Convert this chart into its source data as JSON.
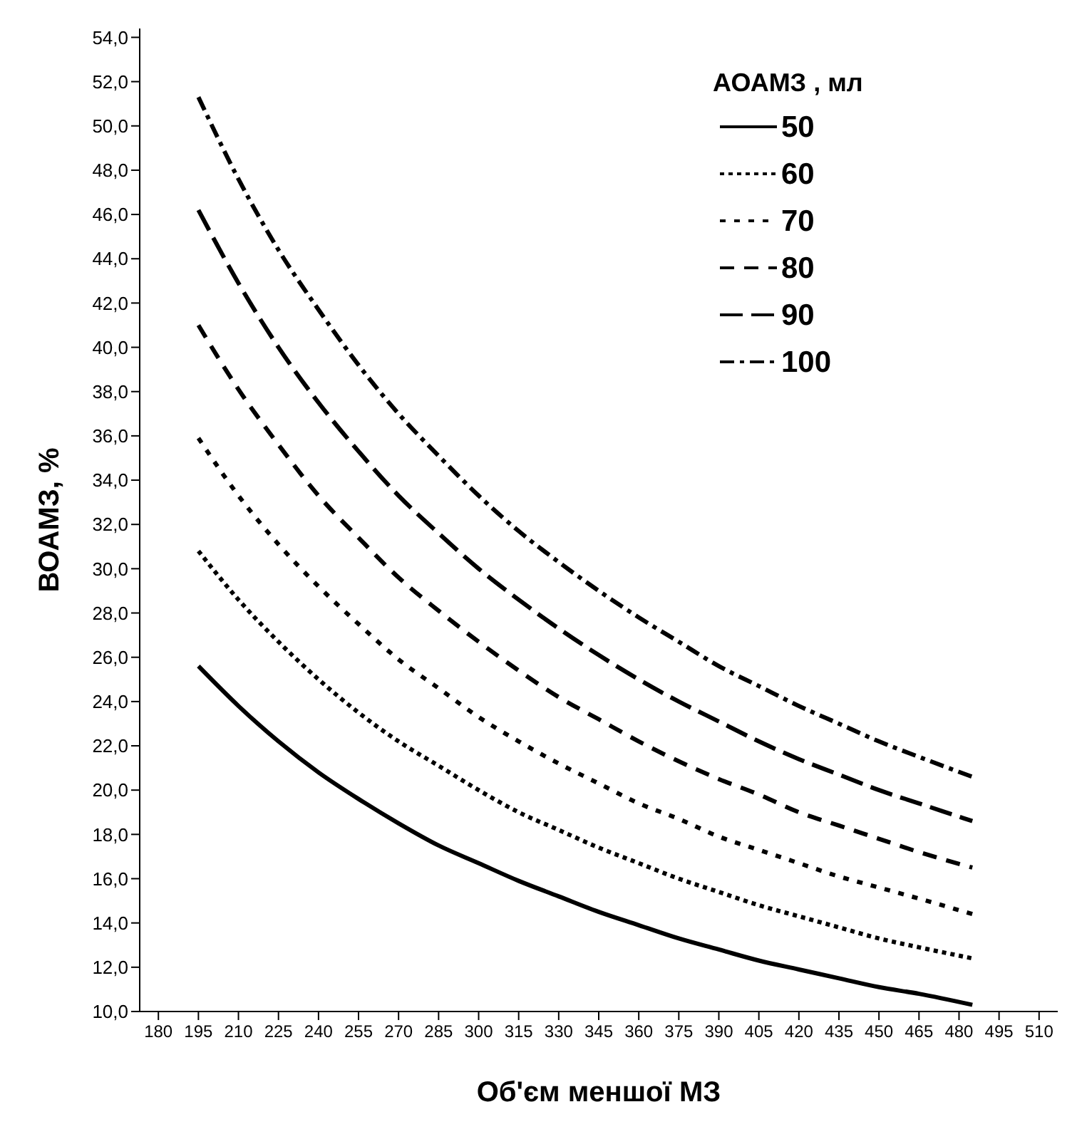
{
  "chart_data": {
    "type": "line",
    "xlabel": "Об'єм меншої МЗ",
    "ylabel": "ВОАМЗ, %",
    "legend_title": "АОАМЗ , мл",
    "legend": "top right",
    "grid": false,
    "marker": "none",
    "x": [
      195,
      210,
      225,
      240,
      255,
      270,
      285,
      300,
      315,
      330,
      345,
      360,
      375,
      390,
      405,
      420,
      435,
      450,
      465,
      485
    ],
    "xlim": [
      173,
      517
    ],
    "xticks": [
      180,
      195,
      210,
      225,
      240,
      255,
      270,
      285,
      300,
      315,
      330,
      345,
      360,
      375,
      390,
      405,
      420,
      435,
      450,
      465,
      480,
      495,
      510
    ],
    "ylim": [
      10,
      54.4
    ],
    "yticks": [
      {
        "value": 10,
        "label": "10,0"
      },
      {
        "value": 12,
        "label": "12,0"
      },
      {
        "value": 14,
        "label": "14,0"
      },
      {
        "value": 16,
        "label": "16,0"
      },
      {
        "value": 18,
        "label": "18,0"
      },
      {
        "value": 20,
        "label": "20,0"
      },
      {
        "value": 22,
        "label": "22,0"
      },
      {
        "value": 24,
        "label": "24,0"
      },
      {
        "value": 26,
        "label": "26,0"
      },
      {
        "value": 28,
        "label": "28,0"
      },
      {
        "value": 30,
        "label": "30,0"
      },
      {
        "value": 32,
        "label": "32,0"
      },
      {
        "value": 34,
        "label": "34,0"
      },
      {
        "value": 36,
        "label": "36,0"
      },
      {
        "value": 38,
        "label": "38,0"
      },
      {
        "value": 40,
        "label": "40,0"
      },
      {
        "value": 42,
        "label": "42,0"
      },
      {
        "value": 44,
        "label": "44,0"
      },
      {
        "value": 46,
        "label": "46,0"
      },
      {
        "value": 48,
        "label": "48,0"
      },
      {
        "value": 50,
        "label": "50,0"
      },
      {
        "value": 52,
        "label": "52,0"
      },
      {
        "value": 54,
        "label": "54,0"
      }
    ],
    "series": [
      {
        "name": "50",
        "color": "#000000",
        "line_style": "solid",
        "values": [
          25.6,
          23.8,
          22.2,
          20.8,
          19.6,
          18.5,
          17.5,
          16.7,
          15.9,
          15.2,
          14.5,
          13.9,
          13.3,
          12.8,
          12.3,
          11.9,
          11.5,
          11.1,
          10.8,
          10.3
        ]
      },
      {
        "name": "60",
        "color": "#000000",
        "line_style": "dotted",
        "values": [
          30.8,
          28.6,
          26.7,
          25.0,
          23.5,
          22.2,
          21.1,
          20.0,
          19.0,
          18.2,
          17.4,
          16.7,
          16.0,
          15.4,
          14.8,
          14.3,
          13.8,
          13.3,
          12.9,
          12.4
        ]
      },
      {
        "name": "70",
        "color": "#000000",
        "line_style": "dotted",
        "values": [
          35.9,
          33.3,
          31.1,
          29.2,
          27.5,
          25.9,
          24.6,
          23.3,
          22.2,
          21.2,
          20.3,
          19.4,
          18.7,
          17.9,
          17.3,
          16.7,
          16.1,
          15.6,
          15.1,
          14.4
        ]
      },
      {
        "name": "80",
        "color": "#000000",
        "line_style": "dashed",
        "values": [
          41.0,
          38.1,
          35.6,
          33.3,
          31.4,
          29.6,
          28.1,
          26.7,
          25.4,
          24.2,
          23.2,
          22.2,
          21.3,
          20.5,
          19.8,
          19.0,
          18.4,
          17.8,
          17.2,
          16.5
        ]
      },
      {
        "name": "90",
        "color": "#000000",
        "line_style": "dashed",
        "values": [
          46.2,
          42.9,
          40.0,
          37.5,
          35.3,
          33.3,
          31.6,
          30.0,
          28.6,
          27.3,
          26.1,
          25.0,
          24.0,
          23.1,
          22.2,
          21.4,
          20.7,
          20.0,
          19.4,
          18.6
        ]
      },
      {
        "name": "100",
        "color": "#000000",
        "line_style": "dashed",
        "values": [
          51.3,
          47.6,
          44.4,
          41.7,
          39.2,
          37.0,
          35.1,
          33.3,
          31.7,
          30.3,
          29.0,
          27.8,
          26.7,
          25.6,
          24.7,
          23.8,
          23.0,
          22.2,
          21.5,
          20.6
        ]
      }
    ]
  }
}
